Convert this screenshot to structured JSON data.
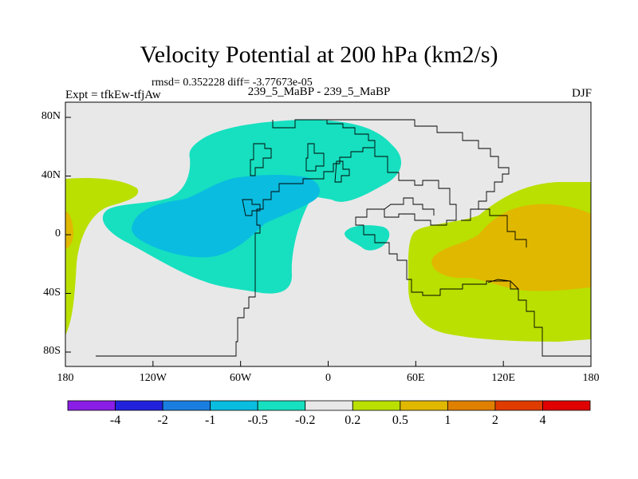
{
  "chart_data": {
    "type": "contour_map",
    "title": "Velocity Potential at 200 hPa (km2/s)",
    "stats_label": "rmsd= 0.352228 diff= -3.77673e-05",
    "experiment_label": "Expt = tfkEw-tfjAw",
    "runs_label": "239_5_MaBP - 239_5_MaBP",
    "season": "DJF",
    "x_ticks": [
      "180",
      "120W",
      "60W",
      "0",
      "60E",
      "120E",
      "180"
    ],
    "y_ticks": [
      "80N",
      "40N",
      "0",
      "40S",
      "80S"
    ],
    "colorbar": {
      "levels": [
        "-4",
        "-2",
        "-1",
        "-0.5",
        "-0.2",
        "0.2",
        "0.5",
        "1",
        "2",
        "4"
      ],
      "colors": [
        "#8a1ee6",
        "#2222dd",
        "#1a7ee0",
        "#0abce0",
        "#16e0c0",
        "#e8e8e8",
        "#b9e000",
        "#e0b800",
        "#e08000",
        "#e03c00",
        "#e00000"
      ]
    },
    "map_background": "#e8e8e8"
  }
}
